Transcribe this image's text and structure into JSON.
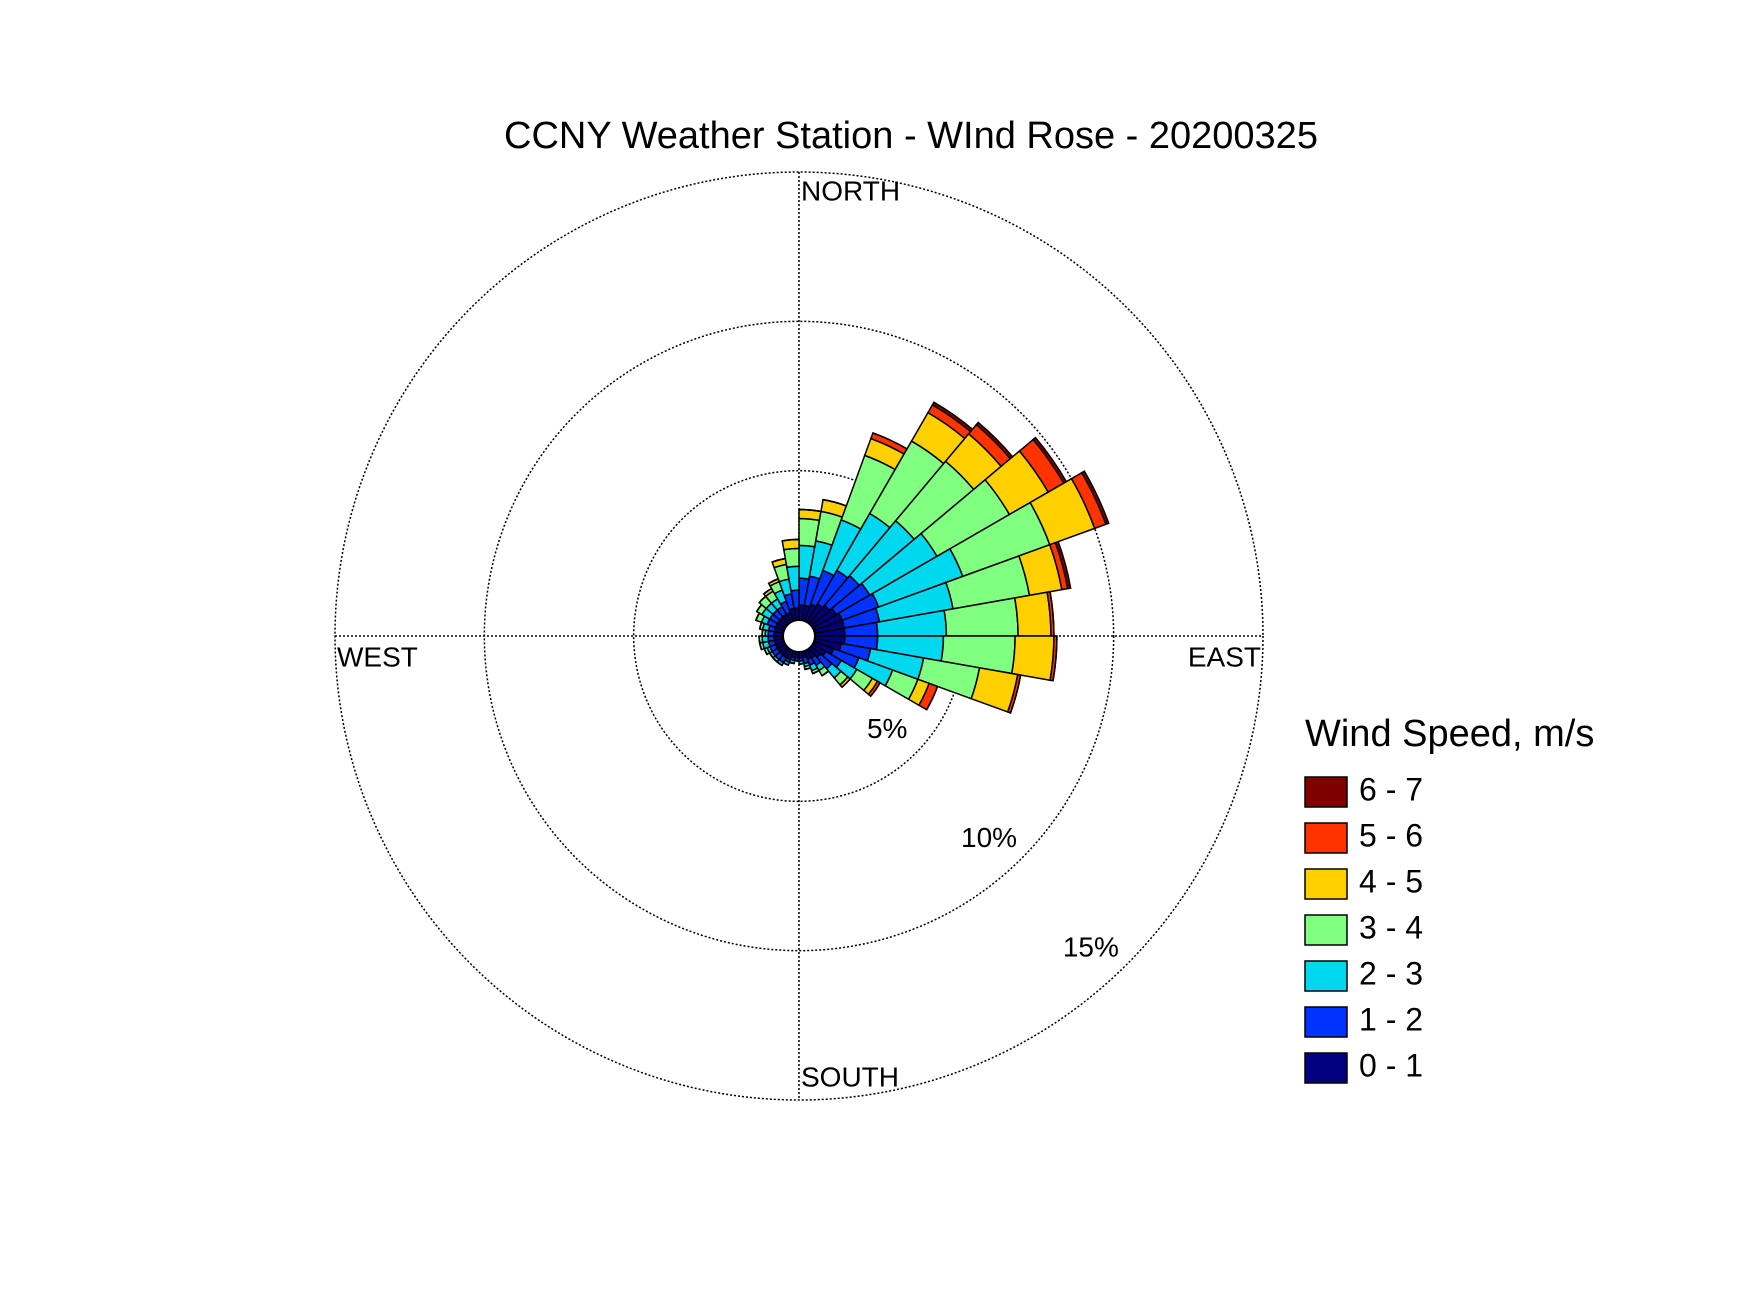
{
  "chart_data": {
    "type": "windrose",
    "title": "CCNY Weather Station - WInd Rose - 20200325",
    "direction_labels": [
      "NORTH",
      "EAST",
      "SOUTH",
      "WEST"
    ],
    "legend_title": "Wind Speed, m/s",
    "rlim": [
      0,
      15
    ],
    "rticks": [
      {
        "value": 5,
        "label": "5%"
      },
      {
        "value": 10,
        "label": "10%"
      },
      {
        "value": 15,
        "label": "15%"
      }
    ],
    "grid": true,
    "directions": [
      5,
      15,
      25,
      35,
      45,
      55,
      65,
      75,
      85,
      95,
      105,
      115,
      125,
      135,
      145,
      155,
      165,
      175,
      185,
      195,
      205,
      215,
      225,
      235,
      245,
      255,
      265,
      275,
      285,
      295,
      305,
      315,
      325,
      335,
      345,
      355
    ],
    "series": [
      {
        "name": "0 - 1",
        "color": "#000080",
        "values": [
          0.5,
          0.5,
          0.6,
          0.7,
          0.8,
          0.9,
          1.0,
          1.0,
          1.0,
          1.0,
          0.9,
          0.7,
          0.5,
          0.4,
          0.3,
          0.3,
          0.2,
          0.2,
          0.2,
          0.2,
          0.3,
          0.3,
          0.3,
          0.3,
          0.3,
          0.3,
          0.3,
          0.3,
          0.3,
          0.3,
          0.3,
          0.3,
          0.3,
          0.3,
          0.4,
          0.4
        ]
      },
      {
        "name": "1 - 2",
        "color": "#0033ff",
        "values": [
          0.9,
          1.0,
          1.2,
          1.3,
          1.3,
          1.3,
          1.3,
          1.2,
          1.1,
          1.1,
          1.0,
          0.9,
          0.6,
          0.5,
          0.3,
          0.2,
          0.2,
          0.1,
          0.1,
          0.1,
          0.1,
          0.2,
          0.2,
          0.2,
          0.2,
          0.2,
          0.2,
          0.2,
          0.2,
          0.3,
          0.3,
          0.3,
          0.3,
          0.4,
          0.5,
          0.6
        ]
      },
      {
        "name": "2 - 3",
        "color": "#00d8f0",
        "values": [
          1.1,
          1.2,
          1.8,
          2.2,
          2.4,
          2.6,
          3.0,
          2.5,
          2.3,
          2.2,
          1.8,
          1.2,
          0.6,
          0.4,
          0.2,
          0.2,
          0.1,
          0.1,
          0,
          0.1,
          0.1,
          0.1,
          0.1,
          0.1,
          0.1,
          0.2,
          0.2,
          0.1,
          0.2,
          0.2,
          0.3,
          0.3,
          0.3,
          0.4,
          0.5,
          0.8
        ]
      },
      {
        "name": "3 - 4",
        "color": "#80ff80",
        "values": [
          0.9,
          1.0,
          2.3,
          2.8,
          2.6,
          2.8,
          3.1,
          2.6,
          2.4,
          2.4,
          1.9,
          0.9,
          0.6,
          0.3,
          0.2,
          0.1,
          0.1,
          0,
          0,
          0,
          0,
          0,
          0,
          0,
          0.1,
          0.1,
          0.1,
          0.1,
          0.1,
          0.2,
          0.2,
          0.3,
          0.3,
          0.3,
          0.5,
          0.6
        ]
      },
      {
        "name": "4 - 5",
        "color": "#ffd000",
        "values": [
          0.3,
          0.4,
          0.6,
          1.1,
          1.2,
          1.5,
          1.6,
          1.1,
          1.1,
          1.3,
          1.3,
          0.4,
          0.2,
          0.1,
          0,
          0,
          0,
          0,
          0,
          0,
          0,
          0,
          0,
          0,
          0,
          0,
          0,
          0,
          0,
          0,
          0,
          0,
          0.1,
          0.1,
          0.2,
          0.3
        ]
      },
      {
        "name": "5 - 6",
        "color": "#ff3300",
        "values": [
          0,
          0,
          0.2,
          0.3,
          0.4,
          0.6,
          0.4,
          0.2,
          0.1,
          0.1,
          0.1,
          0.3,
          0.1,
          0,
          0,
          0,
          0,
          0,
          0,
          0,
          0,
          0,
          0,
          0,
          0,
          0,
          0,
          0,
          0,
          0,
          0,
          0,
          0,
          0,
          0,
          0
        ]
      },
      {
        "name": "6 - 7",
        "color": "#800000",
        "values": [
          0,
          0,
          0,
          0.1,
          0.1,
          0.1,
          0.1,
          0.1,
          0,
          0,
          0,
          0,
          0,
          0,
          0,
          0,
          0,
          0,
          0,
          0,
          0,
          0,
          0,
          0,
          0,
          0,
          0,
          0,
          0,
          0,
          0,
          0,
          0,
          0,
          0,
          0
        ]
      }
    ]
  }
}
